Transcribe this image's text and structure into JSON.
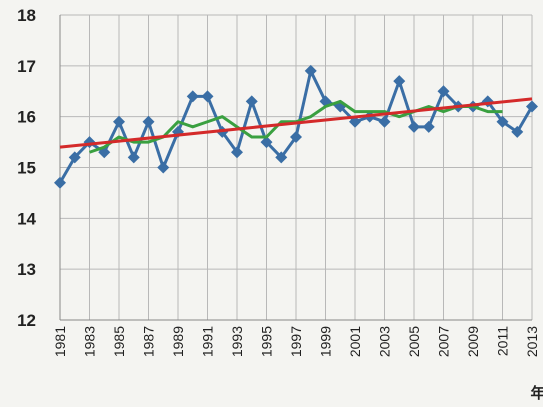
{
  "chart_data": {
    "type": "line",
    "x": [
      1981,
      1982,
      1983,
      1984,
      1985,
      1986,
      1987,
      1988,
      1989,
      1990,
      1991,
      1992,
      1993,
      1994,
      1995,
      1996,
      1997,
      1998,
      1999,
      2000,
      2001,
      2002,
      2003,
      2004,
      2005,
      2006,
      2007,
      2008,
      2009,
      2010,
      2011,
      2012,
      2013
    ],
    "xlim": [
      1981,
      2013
    ],
    "xticks": [
      1981,
      1983,
      1985,
      1987,
      1989,
      1991,
      1993,
      1995,
      1997,
      1999,
      2001,
      2003,
      2005,
      2007,
      2009,
      2011,
      2013
    ],
    "ylim": [
      12,
      18
    ],
    "yticks": [
      12,
      13,
      14,
      15,
      16,
      17,
      18
    ],
    "x_label": "年",
    "grid": true,
    "series": [
      {
        "color": "#3a6ea5",
        "marker": "diamond",
        "values": [
          14.7,
          15.2,
          15.5,
          15.3,
          15.9,
          15.2,
          15.9,
          15.0,
          15.7,
          16.4,
          16.4,
          15.7,
          15.3,
          16.3,
          15.5,
          15.2,
          15.6,
          16.9,
          16.3,
          16.2,
          15.9,
          16.0,
          15.9,
          16.7,
          15.8,
          15.8,
          16.5,
          16.2,
          16.2,
          16.3,
          15.9,
          15.7,
          16.2
        ]
      },
      {
        "color": "#3aa040",
        "values": [
          null,
          null,
          15.3,
          15.4,
          15.6,
          15.5,
          15.5,
          15.6,
          15.9,
          15.8,
          15.9,
          16.0,
          15.8,
          15.6,
          15.6,
          15.9,
          15.9,
          16.0,
          16.2,
          16.3,
          16.1,
          16.1,
          16.1,
          16.0,
          16.1,
          16.2,
          16.1,
          16.2,
          16.2,
          16.1,
          16.1,
          null,
          null
        ]
      },
      {
        "color": "#d42a2a",
        "x": [
          1981,
          2013
        ],
        "values": [
          15.4,
          16.35
        ]
      }
    ]
  }
}
